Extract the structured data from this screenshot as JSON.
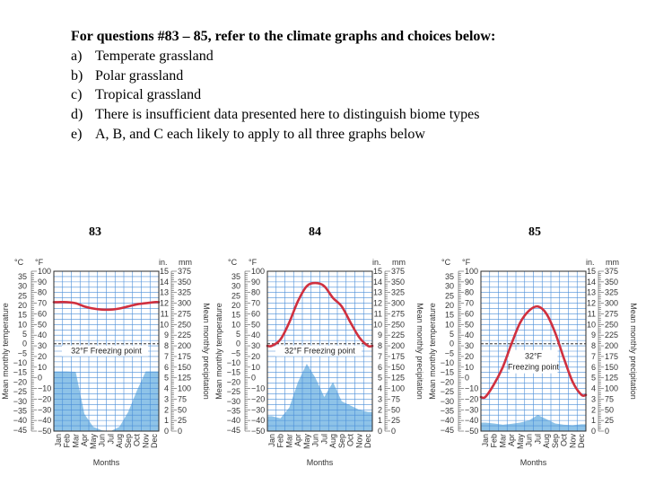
{
  "question": {
    "intro": "For questions #83 – 85, refer to the climate graphs and choices below:",
    "choices": [
      {
        "letter": "a)",
        "text": "Temperate grassland"
      },
      {
        "letter": "b)",
        "text": "Polar grassland"
      },
      {
        "letter": "c)",
        "text": "Tropical grassland"
      },
      {
        "letter": "d)",
        "text": "There is insufficient data presented here to distinguish biome types"
      },
      {
        "letter": "e)",
        "text": "A, B, and C each likely to apply to all three graphs below"
      }
    ]
  },
  "colors": {
    "temperature": "#d0303f",
    "precipitation": "#8ec3e8",
    "grid": "#4a8ed8",
    "border": "#2a2a2a"
  },
  "chart_data": [
    {
      "type": "line",
      "number": "83",
      "x": [
        "Jan",
        "Feb",
        "Mar",
        "Apr",
        "May",
        "Jun",
        "Jul",
        "Aug",
        "Sep",
        "Oct",
        "Nov",
        "Dec"
      ],
      "left_units": {
        "c": "°C",
        "f": "°F"
      },
      "right_units": {
        "in": "in.",
        "mm": "mm"
      },
      "ylabel_left": "Mean monthly temperature",
      "ylabel_right": "Mean monthly precipitation",
      "xlabel": "Months",
      "freezing_label": "32°F Freezing point",
      "c_ticks": [
        35,
        30,
        25,
        20,
        15,
        10,
        5,
        0,
        -5,
        -10,
        -15,
        -20,
        -25,
        -30,
        -35,
        -40,
        -45
      ],
      "f_ticks": [
        100,
        90,
        80,
        70,
        60,
        50,
        40,
        30,
        20,
        10,
        0,
        -10,
        -20,
        -30,
        -40,
        -50
      ],
      "in_ticks": [
        15,
        14,
        13,
        12,
        11,
        10,
        9,
        8,
        7,
        6,
        5,
        4,
        3,
        2,
        1,
        0
      ],
      "mm_ticks": [
        375,
        350,
        325,
        300,
        275,
        250,
        225,
        200,
        175,
        150,
        125,
        100,
        75,
        50,
        25,
        0
      ],
      "temperature_f_range": [
        -50,
        100
      ],
      "precip_mm_range": [
        0,
        375
      ],
      "series": [
        {
          "values_f": [
            71,
            71,
            70,
            67,
            65,
            64,
            64,
            65,
            67,
            69,
            70,
            71
          ]
        },
        {
          "values_mm": [
            140,
            140,
            139,
            40,
            10,
            2,
            0,
            10,
            45,
            95,
            140,
            140
          ]
        }
      ]
    },
    {
      "type": "line",
      "number": "84",
      "x": [
        "Jan",
        "Feb",
        "Mar",
        "Apr",
        "May",
        "Jun",
        "Jul",
        "Aug",
        "Sep",
        "Oct",
        "Nov",
        "Dec"
      ],
      "left_units": {
        "c": "°C",
        "f": "°F"
      },
      "right_units": {
        "in": "in.",
        "mm": "mm"
      },
      "ylabel_left": "Mean monthly temperature",
      "ylabel_right": "Mean monthly precipitation",
      "xlabel": "Months",
      "freezing_label": "32°F Freezing point",
      "c_ticks": [
        35,
        30,
        25,
        20,
        15,
        10,
        5,
        0,
        -5,
        -10,
        -15,
        -20,
        -25,
        -30,
        -35,
        -40,
        -45
      ],
      "f_ticks": [
        100,
        90,
        80,
        70,
        60,
        50,
        40,
        30,
        20,
        10,
        0,
        -10,
        -20,
        -30,
        -40,
        -50
      ],
      "in_ticks": [
        15,
        14,
        13,
        12,
        11,
        10,
        9,
        8,
        7,
        6,
        5,
        4,
        3,
        2,
        1,
        0
      ],
      "mm_ticks": [
        375,
        350,
        325,
        300,
        275,
        250,
        225,
        200,
        175,
        150,
        125,
        100,
        75,
        50,
        25,
        0
      ],
      "temperature_f_range": [
        -50,
        100
      ],
      "precip_mm_range": [
        0,
        375
      ],
      "series": [
        {
          "values_f": [
            30,
            36,
            52,
            72,
            86,
            89,
            86,
            75,
            67,
            52,
            38,
            30
          ]
        },
        {
          "values_mm": [
            35,
            30,
            55,
            115,
            158,
            125,
            80,
            115,
            70,
            60,
            50,
            45
          ]
        }
      ]
    },
    {
      "type": "line",
      "number": "85",
      "x": [
        "Jan",
        "Feb",
        "Mar",
        "Apr",
        "May",
        "Jun",
        "Jul",
        "Aug",
        "Sep",
        "Oct",
        "Nov",
        "Dec"
      ],
      "left_units": {
        "c": "°C",
        "f": "°F"
      },
      "right_units": {
        "in": "in.",
        "mm": "mm"
      },
      "ylabel_left": "Mean monthly temperature",
      "ylabel_right": "Mean monthly precipitation",
      "xlabel": "Months",
      "freezing_label": "32°F Freezing point",
      "c_ticks": [
        35,
        30,
        25,
        20,
        15,
        10,
        5,
        0,
        -5,
        -10,
        -15,
        -20,
        -25,
        -30,
        -35,
        -40,
        -45
      ],
      "f_ticks": [
        100,
        90,
        80,
        70,
        60,
        50,
        40,
        30,
        20,
        10,
        0,
        -10,
        -20,
        -30,
        -40,
        -50
      ],
      "in_ticks": [
        15,
        14,
        13,
        12,
        11,
        10,
        9,
        8,
        7,
        6,
        5,
        4,
        3,
        2,
        1,
        0
      ],
      "mm_ticks": [
        375,
        350,
        325,
        300,
        275,
        250,
        225,
        200,
        175,
        150,
        125,
        100,
        75,
        50,
        25,
        0
      ],
      "temperature_f_range": [
        -50,
        100
      ],
      "precip_mm_range": [
        0,
        375
      ],
      "series": [
        {
          "values_f": [
            -18,
            -6,
            10,
            32,
            52,
            63,
            67,
            60,
            42,
            18,
            -4,
            -16
          ]
        },
        {
          "values_mm": [
            20,
            18,
            15,
            17,
            20,
            25,
            38,
            28,
            18,
            15,
            14,
            16
          ]
        }
      ]
    }
  ]
}
